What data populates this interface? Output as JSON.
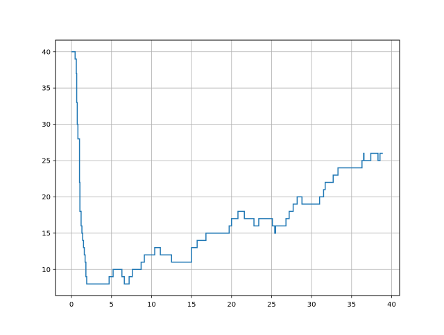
{
  "chart_data": {
    "type": "line",
    "title": "",
    "xlabel": "",
    "ylabel": "",
    "xlim": [
      -2,
      41
    ],
    "ylim": [
      6.4,
      41.6
    ],
    "xticks": [
      0,
      5,
      10,
      15,
      20,
      25,
      30,
      35,
      40
    ],
    "yticks": [
      10,
      15,
      20,
      25,
      30,
      35,
      40
    ],
    "xtick_labels": [
      "0",
      "5",
      "10",
      "15",
      "20",
      "25",
      "30",
      "35",
      "40"
    ],
    "ytick_labels": [
      "10",
      "15",
      "20",
      "25",
      "30",
      "35",
      "40"
    ],
    "grid": true,
    "step": "post",
    "series": [
      {
        "color": "#1f77b4",
        "x": [
          0.0,
          0.45,
          0.6,
          0.65,
          0.72,
          0.8,
          0.9,
          1.0,
          1.05,
          1.1,
          1.2,
          1.3,
          1.4,
          1.5,
          1.6,
          1.7,
          1.8,
          1.9,
          2.0,
          2.1,
          4.7,
          5.2,
          6.1,
          6.3,
          6.6,
          7.2,
          7.6,
          8.7,
          9.1,
          10.4,
          11.1,
          12.5,
          15.0,
          15.7,
          16.8,
          19.7,
          20.0,
          20.8,
          21.6,
          22.8,
          23.4,
          25.1,
          25.4,
          25.5,
          26.8,
          27.2,
          27.7,
          28.2,
          28.8,
          29.3,
          31.0,
          31.5,
          31.7,
          32.0,
          32.7,
          33.3,
          36.3,
          36.5,
          36.55,
          36.6,
          37.4,
          38.3,
          38.55,
          38.9
        ],
        "y": [
          40,
          39,
          37,
          33,
          30,
          28,
          28,
          22,
          18,
          18,
          16,
          15,
          14,
          13,
          12,
          11,
          9,
          8,
          8,
          8,
          9,
          10,
          10,
          9,
          8,
          9,
          10,
          11,
          12,
          13,
          12,
          11,
          13,
          14,
          15,
          16,
          17,
          18,
          17,
          16,
          17,
          16,
          15,
          16,
          17,
          18,
          19,
          20,
          19,
          19,
          20,
          21,
          22,
          22,
          23,
          24,
          25,
          26,
          25,
          25,
          26,
          25,
          26,
          26
        ]
      }
    ]
  }
}
